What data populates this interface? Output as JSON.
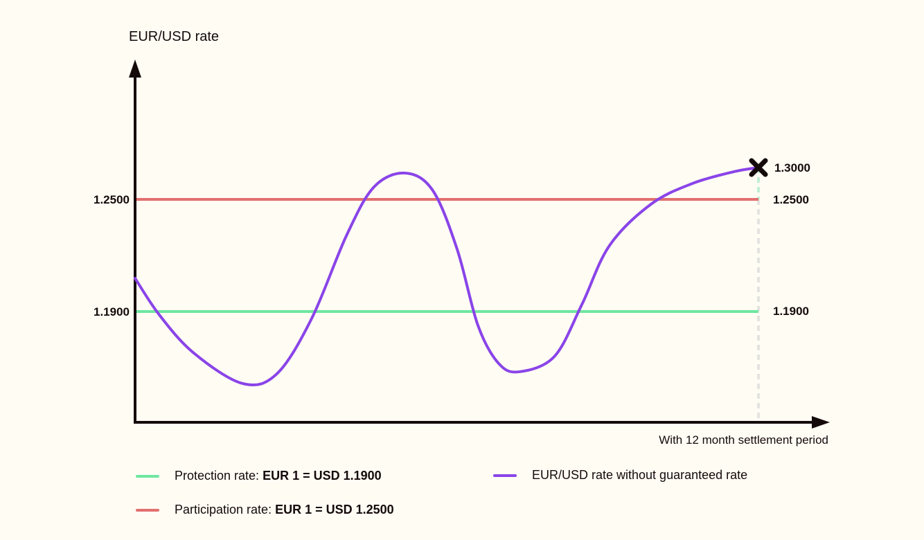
{
  "chart_data": {
    "type": "line",
    "title": "",
    "ylabel": "EUR/USD rate",
    "xlabel": "With 12 month settlement period",
    "xlim": [
      0,
      12
    ],
    "ylim": [
      1.1307,
      1.3
    ],
    "y_tick_labels": [
      "1.2500",
      "1.1900"
    ],
    "right_labels": [
      "1.3000",
      "1.2500",
      "1.1900"
    ],
    "grid": false,
    "reference_lines": [
      {
        "name": "Protection rate",
        "value": 1.19,
        "color": "#6ee7a0"
      },
      {
        "name": "Participation rate",
        "value": 1.25,
        "color": "#e2706e"
      }
    ],
    "series": [
      {
        "name": "EUR/USD rate without guaranteed rate",
        "color": "#8a44e8",
        "x": [
          0,
          0.47,
          1.13,
          2.07,
          2.73,
          3.4,
          4.07,
          4.6,
          5.2,
          5.73,
          6.2,
          6.6,
          7,
          7.4,
          8.07,
          8.6,
          9.13,
          9.93,
          10.73,
          11.53,
          12
        ],
        "y": [
          1.2078,
          1.1881,
          1.1678,
          1.1515,
          1.1567,
          1.1863,
          1.2307,
          1.2696,
          1.2913,
          1.2641,
          1.2233,
          1.1826,
          1.1622,
          1.1578,
          1.1659,
          1.1937,
          1.2252,
          1.2474,
          1.275,
          1.2935,
          1.3
        ]
      }
    ],
    "end_marker": {
      "x": 12,
      "y": 1.3,
      "label": "1.3000"
    },
    "legend_placement": "bottom"
  },
  "legend": {
    "protection_label": "Protection rate:",
    "protection_value": "EUR 1 = USD 1.1900",
    "participation_label": "Participation rate:",
    "participation_value": "EUR 1 = USD 1.2500",
    "series_label": "EUR/USD rate without guaranteed rate"
  }
}
